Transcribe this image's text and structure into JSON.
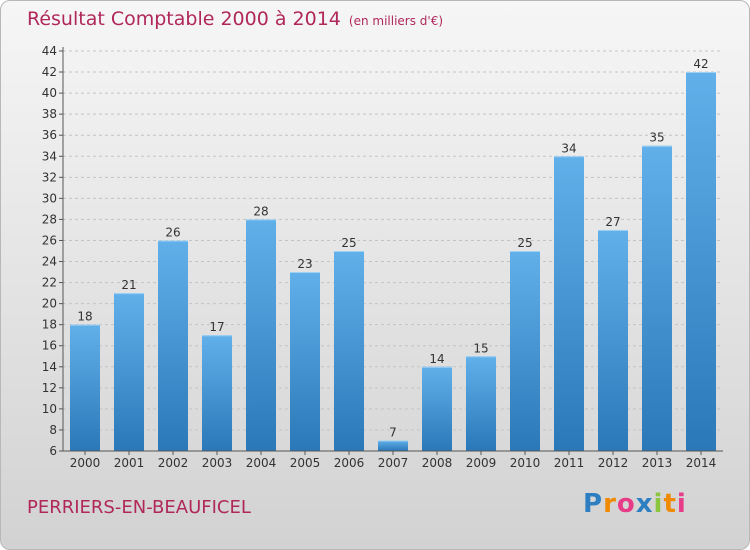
{
  "title": "Résultat Comptable 2000 à 2014",
  "unit_note": "(en milliers d'€)",
  "commune": "PERRIERS-EN-BEAUFICEL",
  "logo_text": "Proxiti",
  "colors": {
    "title": "#b0285a",
    "bar_light": "#62b0ea",
    "bar_dark": "#2a78b8",
    "grid": "#c4c4c4",
    "logo_letters": [
      "#2d7fc1",
      "#f08a00",
      "#e73c87",
      "#2d7fc1",
      "#8cc63f",
      "#f08a00",
      "#e73c87"
    ]
  },
  "chart_data": {
    "type": "bar",
    "categories": [
      "2000",
      "2001",
      "2002",
      "2003",
      "2004",
      "2005",
      "2006",
      "2007",
      "2008",
      "2009",
      "2010",
      "2011",
      "2012",
      "2013",
      "2014"
    ],
    "values": [
      18,
      21,
      26,
      17,
      28,
      23,
      25,
      7,
      14,
      15,
      25,
      34,
      27,
      35,
      42
    ],
    "value_labels": [
      "18",
      "21",
      "26",
      "17",
      "28",
      "23",
      "25",
      "7",
      "14",
      "15",
      "25",
      "34",
      "27",
      "35",
      "42"
    ],
    "yticks": [
      6,
      8,
      10,
      12,
      14,
      16,
      18,
      20,
      22,
      24,
      26,
      28,
      30,
      32,
      34,
      36,
      38,
      40,
      42,
      44
    ],
    "ytick_labels": [
      "6",
      "8",
      "10",
      "12",
      "14",
      "16",
      "18",
      "20",
      "22",
      "24",
      "26",
      "28",
      "30",
      "32",
      "34",
      "36",
      "38",
      "40",
      "42",
      "44"
    ],
    "ylim": [
      6,
      44
    ],
    "grid": true,
    "title": "Résultat Comptable 2000 à 2014",
    "xlabel": "",
    "ylabel": ""
  }
}
